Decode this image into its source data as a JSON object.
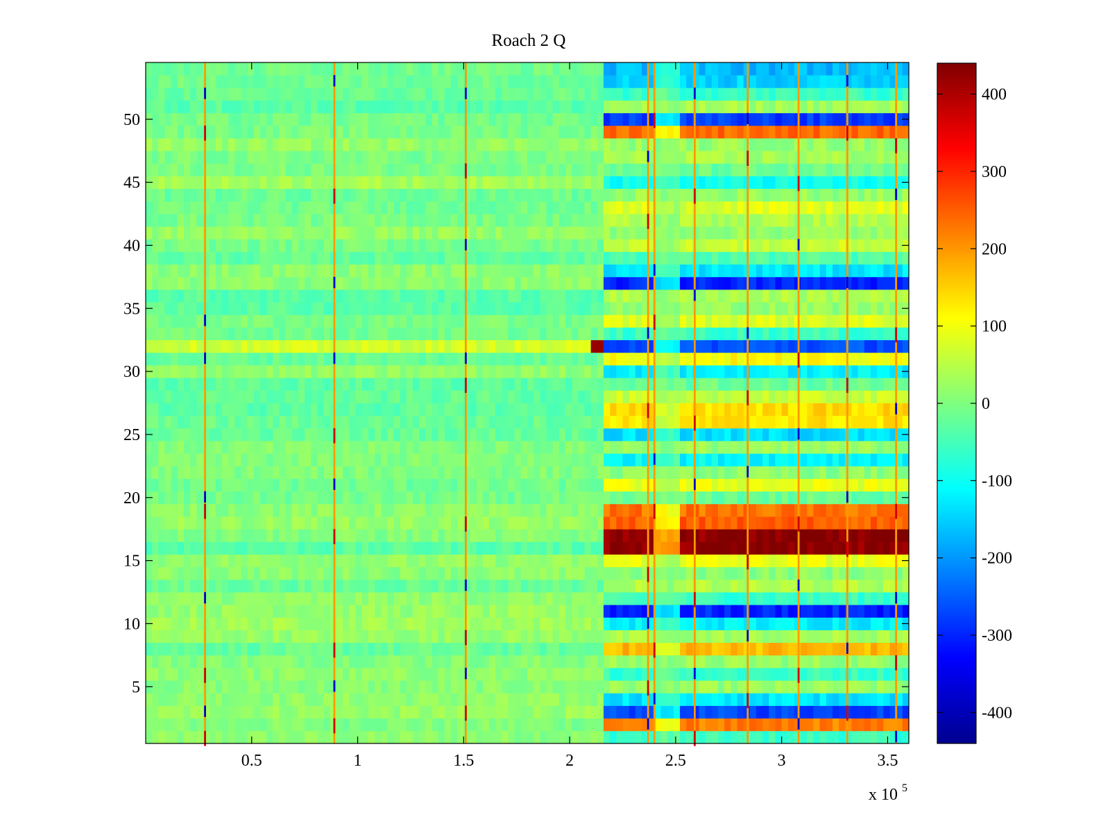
{
  "chart_data": {
    "type": "heatmap",
    "title": "Roach 2 Q",
    "xlabel": "",
    "ylabel": "",
    "x_multiplier_label": "x 10",
    "x_multiplier_exponent": "5",
    "xlim": [
      0,
      3.6
    ],
    "ylim": [
      0.5,
      54.5
    ],
    "x_ticks": [
      0.5,
      1,
      1.5,
      2,
      2.5,
      3,
      3.5
    ],
    "x_tick_labels": [
      "0.5",
      "1",
      "1.5",
      "2",
      "2.5",
      "3",
      "3.5"
    ],
    "y_ticks": [
      5,
      10,
      15,
      20,
      25,
      30,
      35,
      40,
      45,
      50
    ],
    "y_tick_labels": [
      "5",
      "10",
      "15",
      "20",
      "25",
      "30",
      "35",
      "40",
      "45",
      "50"
    ],
    "colormap": "jet",
    "colorbar": {
      "range": [
        -440,
        440
      ],
      "ticks": [
        400,
        300,
        200,
        100,
        0,
        -100,
        -200,
        -300,
        -400
      ],
      "tick_labels": [
        "400",
        "300",
        "200",
        "100",
        "0",
        "-100",
        "-200",
        "-300",
        "-400"
      ]
    },
    "row_count": 54,
    "regime_change_x": 2.15,
    "quiet_rows": {
      "32": 70,
      "31": -20,
      "48": 20,
      "9": 20,
      "14": 10
    },
    "active_row_levels": {
      "54": -170,
      "53": -150,
      "52": -60,
      "51": 30,
      "50": -280,
      "49": 240,
      "48": 20,
      "47": 30,
      "46": -20,
      "45": -100,
      "44": 20,
      "43": 80,
      "42": 40,
      "41": 20,
      "40": 60,
      "39": -40,
      "38": -130,
      "37": -300,
      "36": 40,
      "35": 20,
      "34": 80,
      "33": -60,
      "32": -260,
      "31": 110,
      "30": -120,
      "29": -20,
      "28": 60,
      "27": 140,
      "26": 130,
      "25": -140,
      "24": 20,
      "23": -110,
      "22": 10,
      "21": 90,
      "20": -20,
      "19": 230,
      "18": 250,
      "17": 430,
      "16": 430,
      "15": 90,
      "14": 10,
      "13": 40,
      "12": -60,
      "11": -300,
      "10": -120,
      "9": 30,
      "8": 170,
      "7": 20,
      "6": -60,
      "5": 20,
      "4": -130,
      "3": -270,
      "2": 220,
      "1": -60
    },
    "event_lines": [
      {
        "x": 0.28,
        "red_rows": [
          1,
          6,
          19,
          49
        ],
        "blue_rows": [
          3,
          12,
          20,
          31,
          34,
          52
        ]
      },
      {
        "x": 0.89,
        "red_rows": [
          2,
          8,
          17,
          25,
          44
        ],
        "blue_rows": [
          5,
          21,
          31,
          37,
          53
        ]
      },
      {
        "x": 1.51,
        "red_rows": [
          3,
          9,
          18,
          29,
          46
        ],
        "blue_rows": [
          6,
          13,
          31,
          40,
          52
        ]
      },
      {
        "x": 2.37,
        "red_rows": [
          5,
          14,
          27,
          42
        ],
        "blue_rows": [
          2,
          10,
          33,
          47
        ]
      },
      {
        "x": 2.4,
        "red_rows": [
          8,
          19,
          34,
          50
        ],
        "blue_rows": [
          4,
          23,
          38
        ]
      },
      {
        "x": 2.59,
        "red_rows": [
          1,
          12,
          26,
          44
        ],
        "blue_rows": [
          6,
          21,
          36,
          52
        ]
      },
      {
        "x": 2.84,
        "red_rows": [
          4,
          15,
          28,
          47
        ],
        "blue_rows": [
          9,
          22,
          33,
          50
        ]
      },
      {
        "x": 3.08,
        "red_rows": [
          6,
          18,
          31,
          45
        ],
        "blue_rows": [
          2,
          13,
          25,
          40
        ]
      },
      {
        "x": 3.31,
        "red_rows": [
          3,
          16,
          29,
          49
        ],
        "blue_rows": [
          8,
          20,
          37,
          53
        ]
      },
      {
        "x": 3.54,
        "red_rows": [
          7,
          19,
          33,
          48
        ],
        "blue_rows": [
          1,
          12,
          27,
          44
        ]
      }
    ],
    "notes": "Rows with absolute baseline noise near 0 before x=2.15e5; strong horizontal banding after."
  }
}
